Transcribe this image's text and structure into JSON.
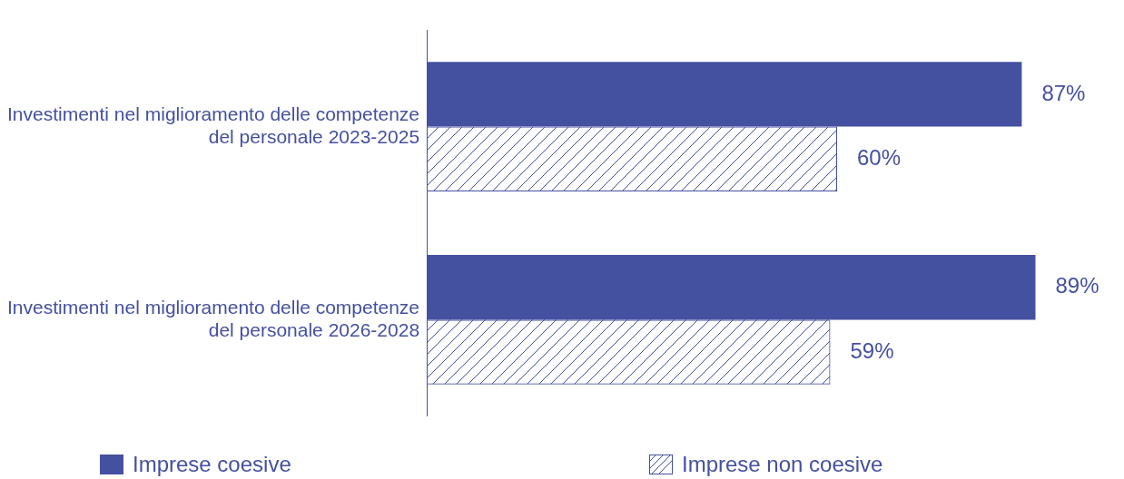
{
  "chart_data": {
    "type": "bar",
    "orientation": "horizontal",
    "categories": [
      "Investimenti nel miglioramento delle competenze del personale 2023-2025",
      "Investimenti nel miglioramento delle competenze del personale 2026-2028"
    ],
    "series": [
      {
        "name": "Imprese coesive",
        "color": "#4450a0",
        "values": [
          87,
          89
        ],
        "value_labels": [
          "87%",
          "89%"
        ]
      },
      {
        "name": "Imprese non coesive",
        "color": "#4450a0",
        "values": [
          60,
          59
        ],
        "value_labels": [
          "60%",
          "59%"
        ]
      }
    ],
    "legend": "bottom",
    "grid": false
  }
}
